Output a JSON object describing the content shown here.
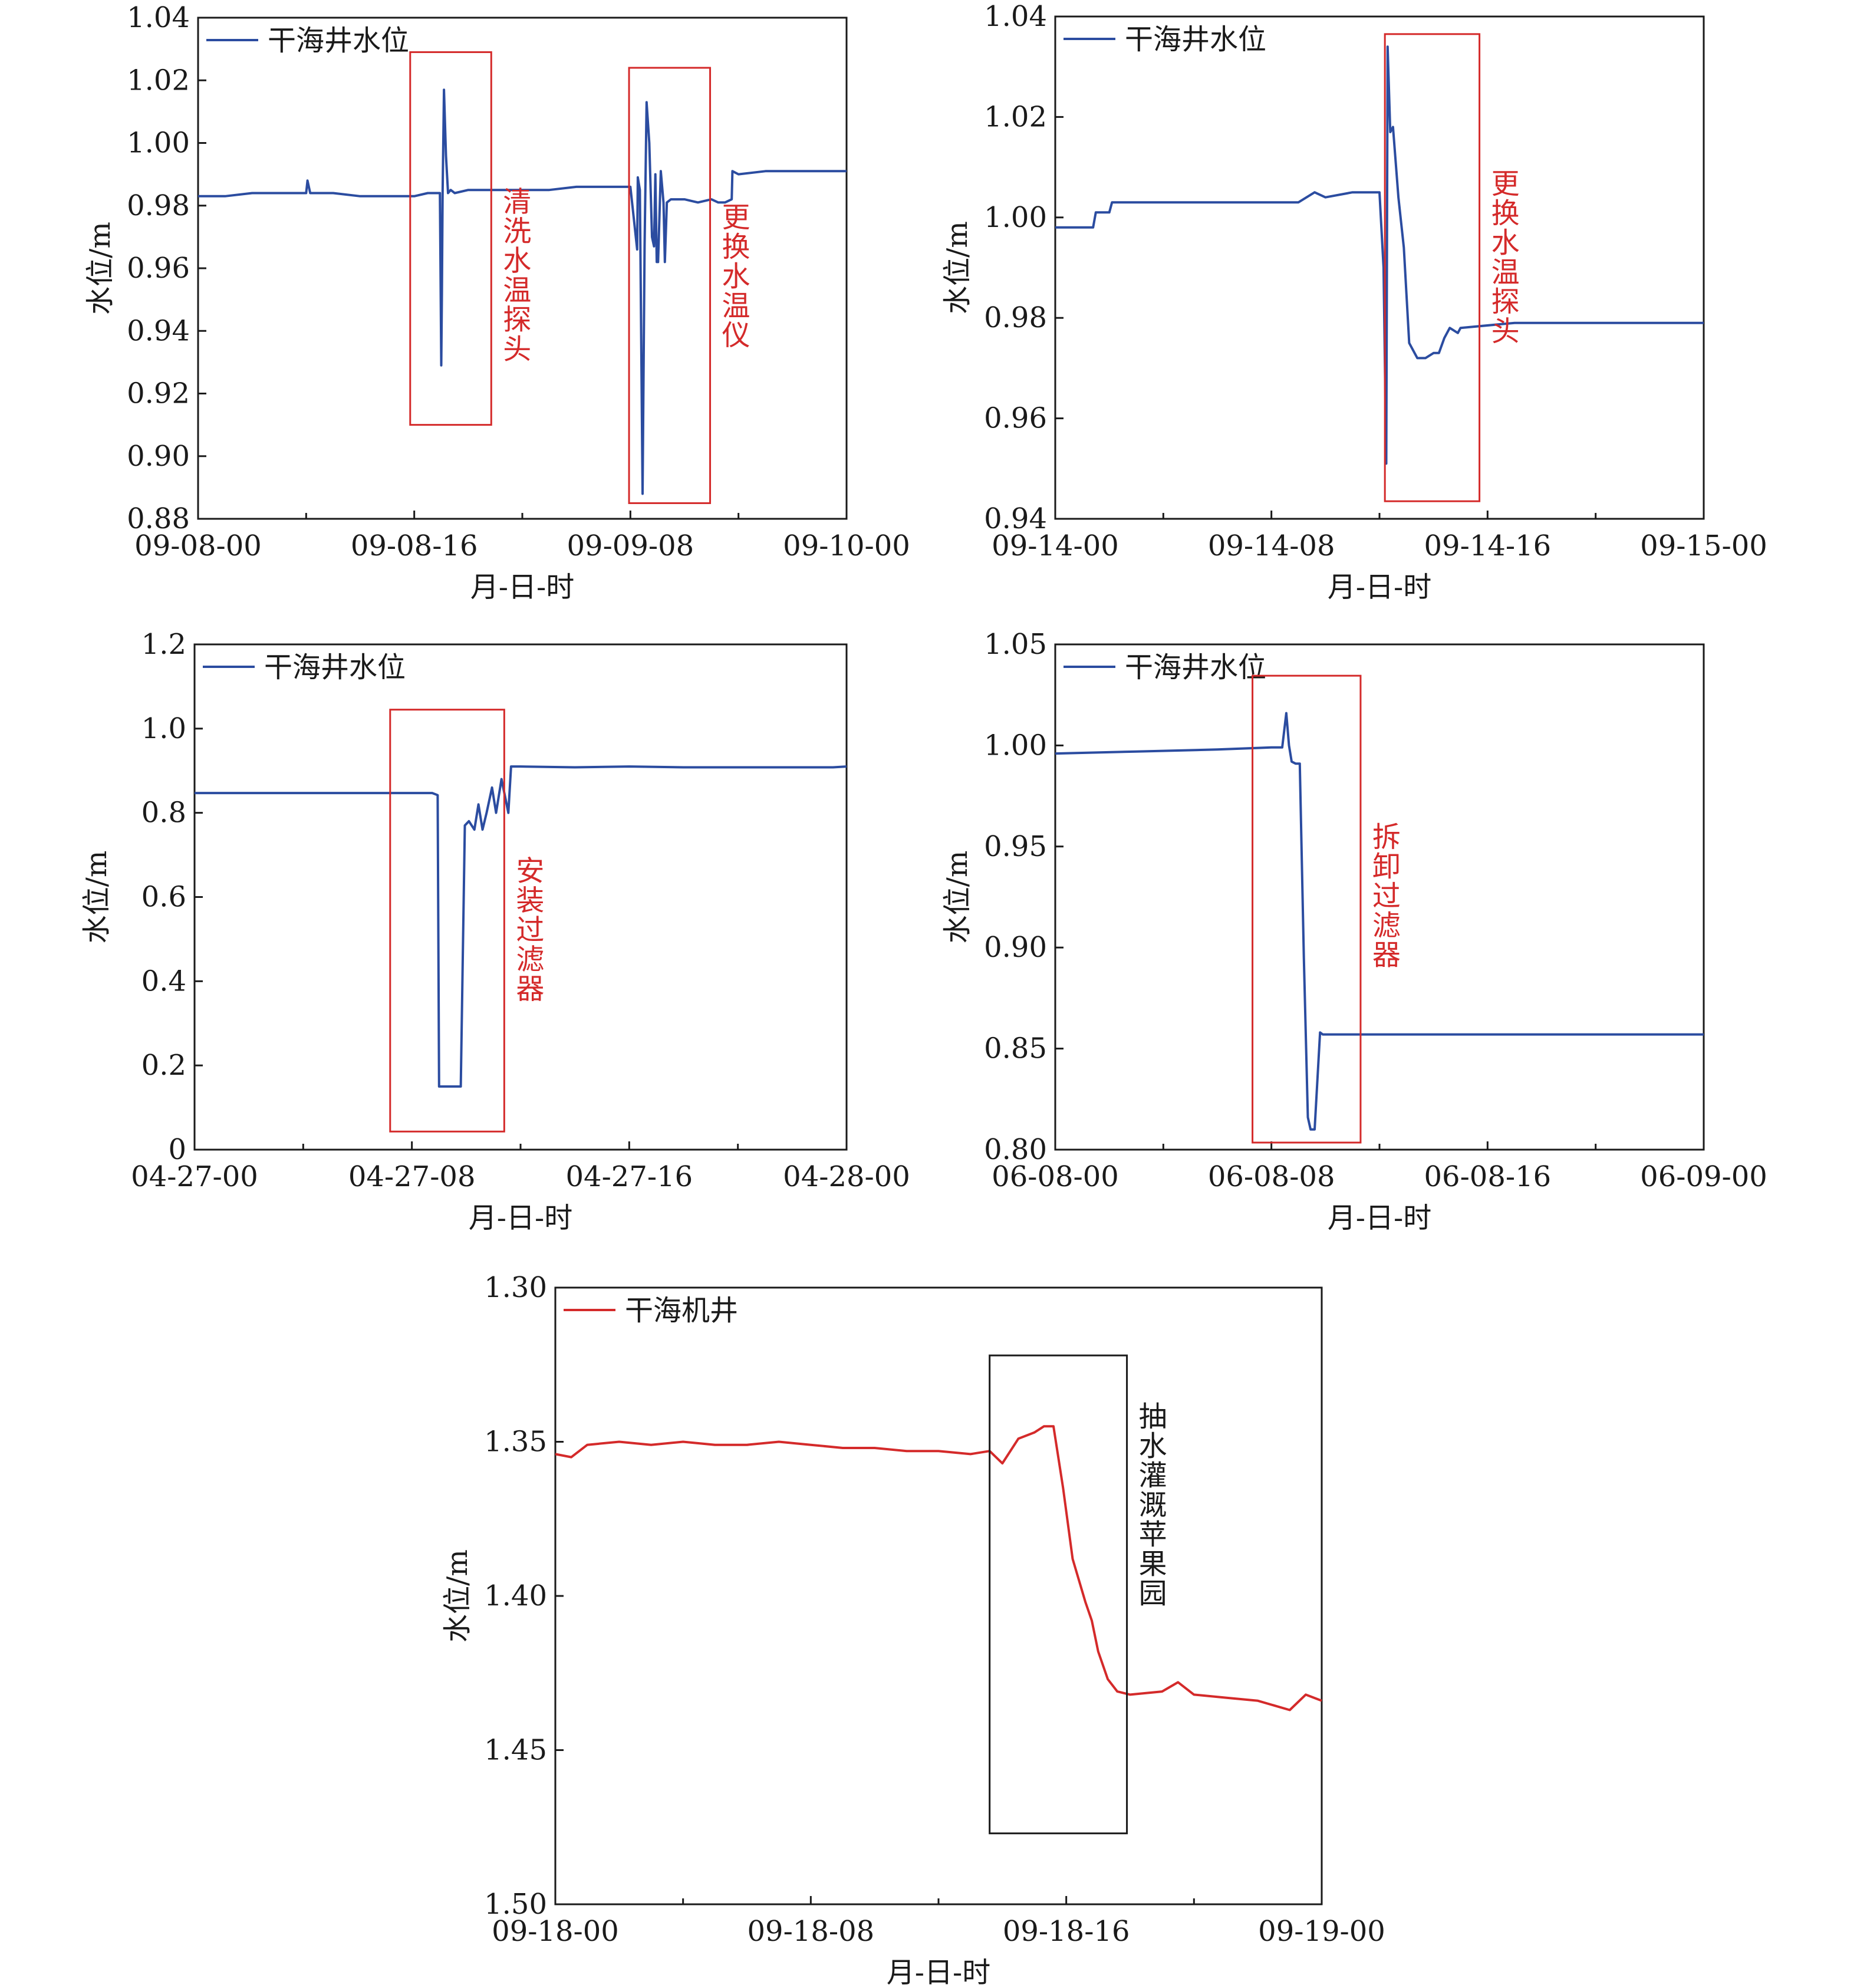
{
  "chart_data": [
    {
      "type": "line",
      "xlabel": "月-日-时",
      "ylabel": "水位/m",
      "ylim": [
        0.88,
        1.04
      ],
      "yticks": [
        "1.04",
        "1.02",
        "1.00",
        "0.98",
        "0.96",
        "0.94",
        "0.92",
        "0.90",
        "0.88"
      ],
      "xlim_hours": [
        0,
        48
      ],
      "xticks": [
        {
          "h": 0,
          "label": "09-08-00"
        },
        {
          "h": 16,
          "label": "09-08-16"
        },
        {
          "h": 32,
          "label": "09-09-08"
        },
        {
          "h": 48,
          "label": "09-10-00"
        }
      ],
      "minor_xticks_hours": [
        8,
        24,
        40
      ],
      "series": [
        {
          "name": "干海井水位",
          "color": "#2b4ca0",
          "x": [
            0,
            2,
            4,
            6,
            8,
            8.1,
            8.3,
            10,
            12,
            14,
            16,
            17,
            17.9,
            18.0,
            18.05,
            18.1,
            18.2,
            18.35,
            18.5,
            18.7,
            19,
            20,
            22,
            24,
            26,
            28,
            30,
            32,
            32.4,
            32.5,
            32.55,
            32.7,
            32.9,
            33.05,
            33.2,
            33.4,
            33.6,
            33.75,
            33.85,
            33.95,
            34.05,
            34.25,
            34.45,
            34.55,
            34.7,
            35,
            36,
            37,
            38,
            38.5,
            39,
            39.5,
            39.55,
            40,
            42,
            44,
            46,
            48
          ],
          "y": [
            0.983,
            0.983,
            0.984,
            0.984,
            0.984,
            0.988,
            0.984,
            0.984,
            0.983,
            0.983,
            0.983,
            0.984,
            0.984,
            0.929,
            0.952,
            0.984,
            1.017,
            0.996,
            0.984,
            0.985,
            0.984,
            0.985,
            0.985,
            0.985,
            0.985,
            0.986,
            0.986,
            0.986,
            0.97,
            0.966,
            0.989,
            0.985,
            0.888,
            0.967,
            1.013,
            1.0,
            0.97,
            0.967,
            0.99,
            0.962,
            0.962,
            0.991,
            0.981,
            0.962,
            0.981,
            0.982,
            0.982,
            0.981,
            0.982,
            0.981,
            0.981,
            0.982,
            0.991,
            0.99,
            0.991,
            0.991,
            0.991,
            0.991
          ]
        }
      ],
      "annotations": [
        {
          "text": "清洗水温探头",
          "x_from": 15.7,
          "x_to": 21.7,
          "y_from": 1.029,
          "y_to": 0.91
        },
        {
          "text": "更换水温仪",
          "x_from": 31.9,
          "x_to": 37.9,
          "y_from": 1.024,
          "y_to": 0.885
        }
      ]
    },
    {
      "type": "line",
      "xlabel": "月-日-时",
      "ylabel": "水位/m",
      "ylim": [
        0.94,
        1.04
      ],
      "yticks": [
        "1.04",
        "1.02",
        "1.00",
        "0.98",
        "0.96",
        "0.94"
      ],
      "xlim_hours": [
        0,
        24
      ],
      "xticks": [
        {
          "h": 0,
          "label": "09-14-00"
        },
        {
          "h": 8,
          "label": "09-14-08"
        },
        {
          "h": 16,
          "label": "09-14-16"
        },
        {
          "h": 24,
          "label": "09-15-00"
        }
      ],
      "minor_xticks_hours": [
        4,
        12,
        20
      ],
      "series": [
        {
          "name": "干海井水位",
          "color": "#2b4ca0",
          "x": [
            0,
            1.4,
            1.5,
            2.0,
            2.1,
            4,
            6,
            8,
            9,
            9.6,
            10,
            11,
            11.5,
            12.0,
            12.15,
            12.25,
            12.3,
            12.4,
            12.5,
            12.7,
            12.9,
            13.1,
            13.4,
            13.7,
            14,
            14.2,
            14.4,
            14.6,
            14.9,
            15,
            17,
            19,
            21,
            23,
            24
          ],
          "y": [
            0.998,
            0.998,
            1.001,
            1.001,
            1.003,
            1.003,
            1.003,
            1.003,
            1.003,
            1.005,
            1.004,
            1.005,
            1.005,
            1.005,
            0.99,
            0.951,
            1.034,
            1.017,
            1.018,
            1.004,
            0.994,
            0.975,
            0.972,
            0.972,
            0.973,
            0.973,
            0.976,
            0.978,
            0.977,
            0.978,
            0.979,
            0.979,
            0.979,
            0.979,
            0.979
          ]
        }
      ],
      "annotations": [
        {
          "text": "更换水温探头",
          "x_from": 12.2,
          "x_to": 15.7,
          "y_from": 1.0365,
          "y_to": 0.9435
        }
      ]
    },
    {
      "type": "line",
      "xlabel": "月-日-时",
      "ylabel": "水位/m",
      "ylim": [
        0,
        1.2
      ],
      "yticks": [
        "1.2",
        "1.0",
        "0.8",
        "0.6",
        "0.4",
        "0.2",
        "0"
      ],
      "xlim_hours": [
        0,
        24
      ],
      "xticks": [
        {
          "h": 0,
          "label": "04-27-00"
        },
        {
          "h": 8,
          "label": "04-27-08"
        },
        {
          "h": 16,
          "label": "04-27-16"
        },
        {
          "h": 24,
          "label": "04-28-00"
        }
      ],
      "minor_xticks_hours": [
        4,
        12,
        20
      ],
      "series": [
        {
          "name": "干海井水位",
          "color": "#2b4ca0",
          "x": [
            0,
            4,
            8.4,
            8.75,
            8.95,
            9.0,
            9.7,
            9.8,
            9.95,
            10.1,
            10.3,
            10.45,
            10.6,
            10.75,
            10.95,
            11.1,
            11.3,
            11.55,
            11.65,
            11.75,
            12,
            14,
            16,
            18,
            20,
            22,
            23.5,
            24
          ],
          "y": [
            0.847,
            0.847,
            0.847,
            0.847,
            0.842,
            0.15,
            0.15,
            0.15,
            0.77,
            0.78,
            0.76,
            0.82,
            0.76,
            0.8,
            0.86,
            0.8,
            0.88,
            0.8,
            0.91,
            0.91,
            0.91,
            0.908,
            0.91,
            0.908,
            0.908,
            0.908,
            0.908,
            0.91
          ]
        }
      ],
      "annotations": [
        {
          "text": "安装过滤器",
          "x_from": 7.2,
          "x_to": 11.4,
          "y_from": 1.045,
          "y_to": 0.043
        }
      ]
    },
    {
      "type": "line",
      "xlabel": "月-日-时",
      "ylabel": "水位/m",
      "ylim": [
        0.8,
        1.05
      ],
      "yticks": [
        "1.05",
        "1.00",
        "0.95",
        "0.90",
        "0.85",
        "0.80"
      ],
      "xlim_hours": [
        0,
        24
      ],
      "xticks": [
        {
          "h": 0,
          "label": "06-08-00"
        },
        {
          "h": 8,
          "label": "06-08-08"
        },
        {
          "h": 16,
          "label": "06-08-16"
        },
        {
          "h": 24,
          "label": "06-09-00"
        }
      ],
      "minor_xticks_hours": [
        4,
        12,
        20
      ],
      "series": [
        {
          "name": "干海井水位",
          "color": "#2b4ca0",
          "x": [
            0,
            3,
            6,
            8,
            8.4,
            8.55,
            8.65,
            8.75,
            8.9,
            9.05,
            9.2,
            9.35,
            9.45,
            9.6,
            9.8,
            9.9,
            10,
            12,
            14,
            16,
            18,
            20,
            22,
            24
          ],
          "y": [
            0.996,
            0.997,
            0.998,
            0.999,
            0.999,
            1.016,
            1.0,
            0.992,
            0.991,
            0.991,
            0.895,
            0.816,
            0.81,
            0.81,
            0.858,
            0.857,
            0.857,
            0.857,
            0.857,
            0.857,
            0.857,
            0.857,
            0.857,
            0.857
          ]
        }
      ],
      "annotations": [
        {
          "text": "拆卸过滤器",
          "x_from": 7.3,
          "x_to": 11.3,
          "y_from": 1.0345,
          "y_to": 0.8035
        }
      ]
    },
    {
      "type": "line",
      "xlabel": "月-日-时",
      "ylabel": "水位/m",
      "ylim": [
        1.3,
        1.5
      ],
      "y_inverted": true,
      "yticks": [
        "1.30",
        "1.35",
        "1.40",
        "1.45",
        "1.50"
      ],
      "xlim_hours": [
        0,
        24
      ],
      "xticks": [
        {
          "h": 0,
          "label": "09-18-00"
        },
        {
          "h": 8,
          "label": "09-18-08"
        },
        {
          "h": 16,
          "label": "09-18-16"
        },
        {
          "h": 24,
          "label": "09-19-00"
        }
      ],
      "minor_xticks_hours": [
        4,
        12,
        20
      ],
      "series": [
        {
          "name": "干海机井",
          "color": "#d42a2a",
          "x": [
            0,
            0.5,
            1,
            2,
            3,
            4,
            5,
            6,
            7,
            8,
            9,
            10,
            11,
            12,
            13,
            13.6,
            14,
            14.5,
            15,
            15.3,
            15.6,
            15.9,
            16.2,
            16.6,
            16.8,
            17,
            17.3,
            17.6,
            18,
            19,
            19.5,
            20,
            21,
            22,
            23,
            23.5,
            24
          ],
          "y": [
            1.354,
            1.355,
            1.351,
            1.35,
            1.351,
            1.35,
            1.351,
            1.351,
            1.35,
            1.351,
            1.352,
            1.352,
            1.353,
            1.353,
            1.354,
            1.353,
            1.357,
            1.349,
            1.347,
            1.345,
            1.345,
            1.365,
            1.388,
            1.402,
            1.408,
            1.418,
            1.427,
            1.431,
            1.432,
            1.431,
            1.428,
            1.432,
            1.433,
            1.434,
            1.437,
            1.432,
            1.434
          ]
        }
      ],
      "annotations": [
        {
          "text": "抽水灌溉苹果园",
          "x_from": 13.6,
          "x_to": 17.9,
          "y_from": 1.322,
          "y_to": 1.477
        }
      ]
    }
  ]
}
